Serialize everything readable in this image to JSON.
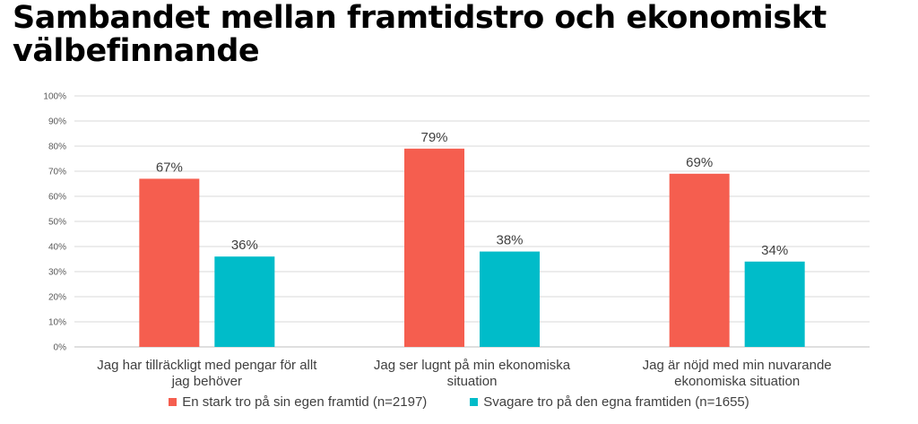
{
  "title_lines": [
    "Sambandet mellan framtidstro och ekonomiskt",
    "välbefinnande"
  ],
  "chart_data": {
    "type": "bar",
    "categories": [
      [
        "Jag har tillräckligt med pengar för allt",
        "jag behöver"
      ],
      [
        "Jag ser lugnt på min ekonomiska",
        "situation"
      ],
      [
        "Jag är nöjd med min nuvarande",
        "ekonomiska situation"
      ]
    ],
    "series": [
      {
        "name": "En stark tro på sin egen framtid (n=2197)",
        "values": [
          67,
          79,
          69
        ],
        "labels": [
          "67%",
          "79%",
          "69%"
        ],
        "color": "#f55e4f"
      },
      {
        "name": "Svagare tro på den egna framtiden (n=1655)",
        "values": [
          36,
          38,
          34
        ],
        "labels": [
          "36%",
          "38%",
          "34%"
        ],
        "color": "#00bcc9"
      }
    ],
    "ylim": [
      0,
      100
    ],
    "yticks": [
      "0%",
      "10%",
      "20%",
      "30%",
      "40%",
      "50%",
      "60%",
      "70%",
      "80%",
      "90%",
      "100%"
    ],
    "grid": true,
    "legend_position": "bottom"
  }
}
